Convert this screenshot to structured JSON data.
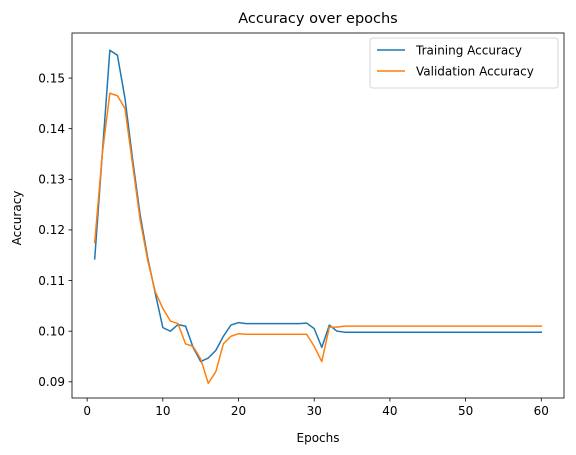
{
  "chart_data": {
    "type": "line",
    "title": "Accuracy over epochs",
    "xlabel": "Epochs",
    "ylabel": "Accuracy",
    "xlim": [
      -2,
      63
    ],
    "ylim": [
      0.0868,
      0.1589
    ],
    "xticks": [
      0,
      10,
      20,
      30,
      40,
      50,
      60
    ],
    "yticks": [
      0.09,
      0.1,
      0.11,
      0.12,
      0.13,
      0.14,
      0.15
    ],
    "ytick_labels": [
      "0.09",
      "0.10",
      "0.11",
      "0.12",
      "0.13",
      "0.14",
      "0.15"
    ],
    "grid": false,
    "legend_position": "upper right",
    "x": [
      1,
      2,
      3,
      4,
      5,
      6,
      7,
      8,
      9,
      10,
      11,
      12,
      13,
      14,
      15,
      16,
      17,
      18,
      19,
      20,
      21,
      22,
      23,
      24,
      25,
      26,
      27,
      28,
      29,
      30,
      31,
      32,
      33,
      34,
      35,
      36,
      37,
      38,
      39,
      40,
      41,
      42,
      43,
      44,
      45,
      46,
      47,
      48,
      49,
      50,
      51,
      52,
      53,
      54,
      55,
      56,
      57,
      58,
      59,
      60
    ],
    "series": [
      {
        "name": "Training Accuracy",
        "color": "#1f77b4",
        "values": [
          0.1143,
          0.135,
          0.1555,
          0.1545,
          0.146,
          0.134,
          0.123,
          0.1145,
          0.1075,
          0.1007,
          0.1,
          0.1013,
          0.101,
          0.0968,
          0.094,
          0.0947,
          0.0962,
          0.099,
          0.1012,
          0.1017,
          0.1015,
          0.1015,
          0.1015,
          0.1015,
          0.1015,
          0.1015,
          0.1015,
          0.1015,
          0.1016,
          0.1005,
          0.0968,
          0.1012,
          0.1,
          0.0998,
          0.0998,
          0.0998,
          0.0998,
          0.0998,
          0.0998,
          0.0998,
          0.0998,
          0.0998,
          0.0998,
          0.0998,
          0.0998,
          0.0998,
          0.0998,
          0.0998,
          0.0998,
          0.0998,
          0.0998,
          0.0998,
          0.0998,
          0.0998,
          0.0998,
          0.0998,
          0.0998,
          0.0998,
          0.0998,
          0.0998
        ]
      },
      {
        "name": "Validation Accuracy",
        "color": "#ff7f0e",
        "values": [
          0.1175,
          0.135,
          0.147,
          0.1465,
          0.144,
          0.133,
          0.122,
          0.114,
          0.1078,
          0.1045,
          0.102,
          0.1015,
          0.0975,
          0.097,
          0.0945,
          0.0897,
          0.092,
          0.0975,
          0.099,
          0.0995,
          0.0994,
          0.0994,
          0.0994,
          0.0994,
          0.0994,
          0.0994,
          0.0994,
          0.0994,
          0.0994,
          0.097,
          0.094,
          0.1008,
          0.1008,
          0.101,
          0.101,
          0.101,
          0.101,
          0.101,
          0.101,
          0.101,
          0.101,
          0.101,
          0.101,
          0.101,
          0.101,
          0.101,
          0.101,
          0.101,
          0.101,
          0.101,
          0.101,
          0.101,
          0.101,
          0.101,
          0.101,
          0.101,
          0.101,
          0.101,
          0.101,
          0.101
        ]
      }
    ]
  }
}
